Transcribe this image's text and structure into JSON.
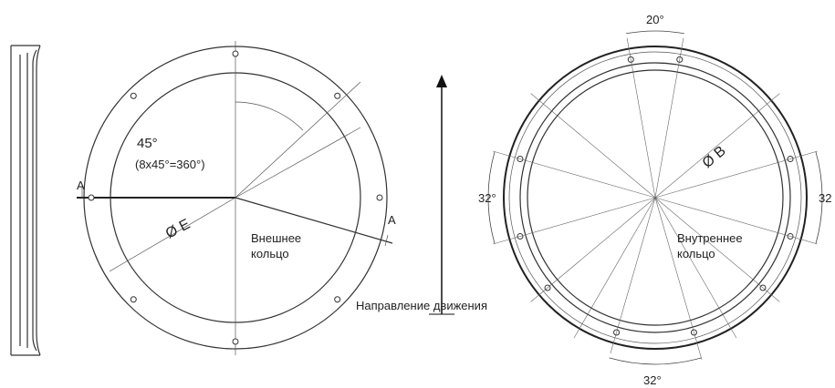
{
  "left_view": {
    "section_mark_left": "A",
    "section_mark_right": "A",
    "angle": "45°",
    "angle_note": "(8x45°=360°)",
    "diameter": "Ø E",
    "ring_label": [
      "Внешнее",
      "кольцо"
    ]
  },
  "direction": {
    "label": "Направление движения"
  },
  "right_view": {
    "top_angle": "20°",
    "diameter": "Ø B",
    "left_angle": "32°",
    "right_angle": "32",
    "bottom_angle": "32°",
    "ring_label": [
      "Внутреннее",
      "кольцо"
    ]
  }
}
